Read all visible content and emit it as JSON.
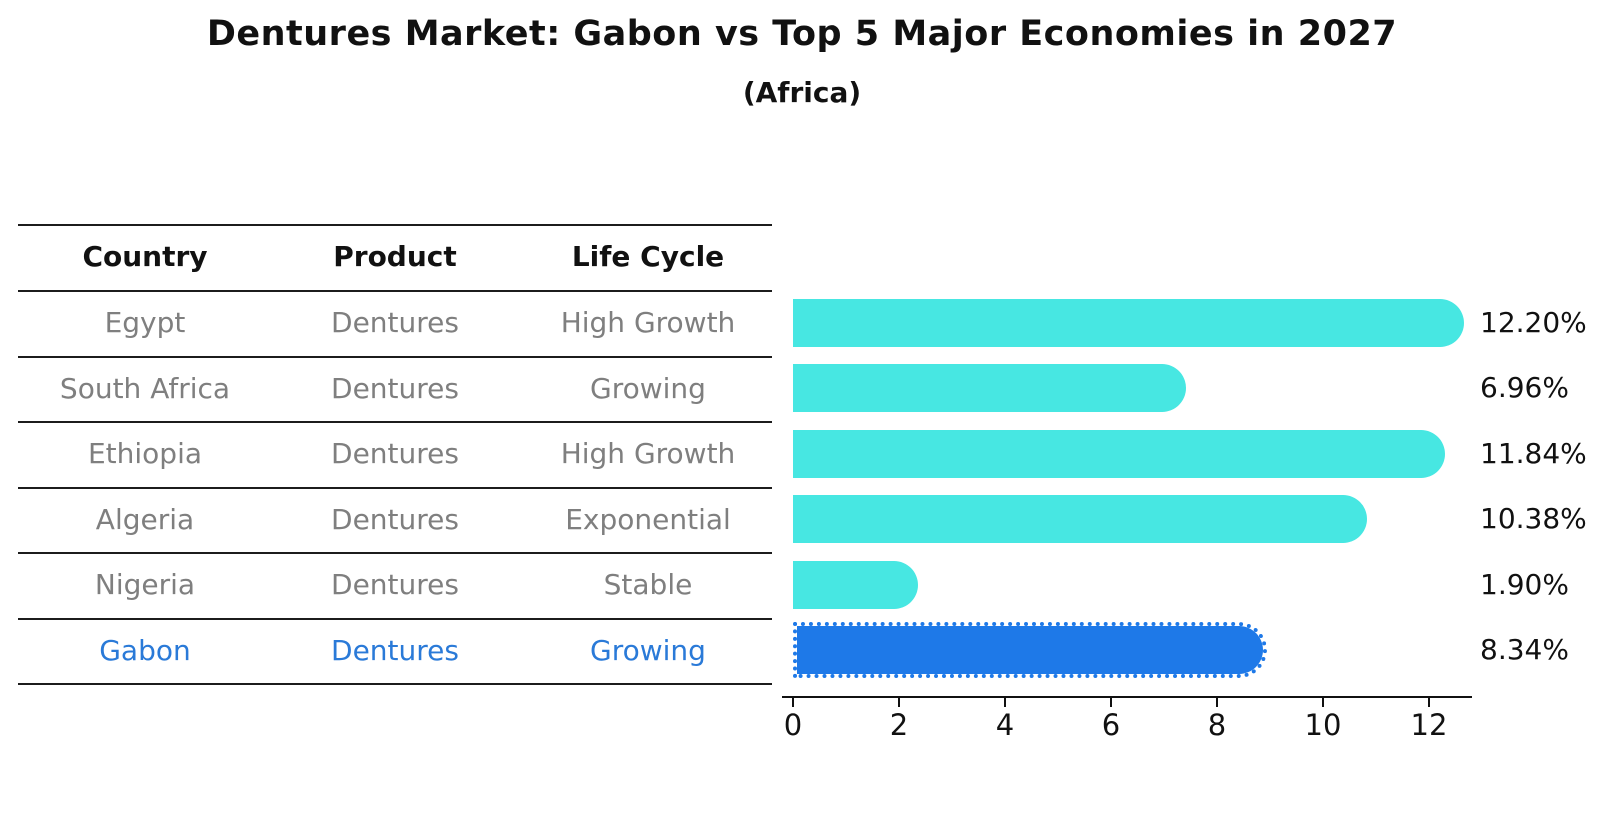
{
  "title": "Dentures Market: Gabon vs Top 5 Major Economies in 2027",
  "subtitle": "(Africa)",
  "table": {
    "headers": [
      "Country",
      "Product",
      "Life Cycle"
    ],
    "rows": [
      {
        "country": "Egypt",
        "product": "Dentures",
        "life_cycle": "High Growth"
      },
      {
        "country": "South Africa",
        "product": "Dentures",
        "life_cycle": "Growing"
      },
      {
        "country": "Ethiopia",
        "product": "Dentures",
        "life_cycle": "High Growth"
      },
      {
        "country": "Algeria",
        "product": "Dentures",
        "life_cycle": "Exponential"
      },
      {
        "country": "Nigeria",
        "product": "Dentures",
        "life_cycle": "Stable"
      },
      {
        "country": "Gabon",
        "product": "Dentures",
        "life_cycle": "Growing"
      }
    ]
  },
  "chart_data": {
    "type": "bar",
    "orientation": "horizontal",
    "categories": [
      "Egypt",
      "South Africa",
      "Ethiopia",
      "Algeria",
      "Nigeria",
      "Gabon"
    ],
    "values": [
      12.2,
      6.96,
      11.84,
      10.38,
      1.9,
      8.34
    ],
    "value_labels": [
      "12.20%",
      "6.96%",
      "11.84%",
      "10.38%",
      "1.90%",
      "8.34%"
    ],
    "x_ticks": [
      "0",
      "2",
      "4",
      "6",
      "8",
      "10",
      "12"
    ],
    "xlim": [
      0,
      13
    ],
    "grid": false,
    "legend": false,
    "bar_color": "#47e7e2",
    "highlight": {
      "index": 5,
      "category": "Gabon",
      "color": "#1e79e8",
      "style": "dotted-border"
    },
    "text_highlight_color": "#2a7ad8"
  }
}
